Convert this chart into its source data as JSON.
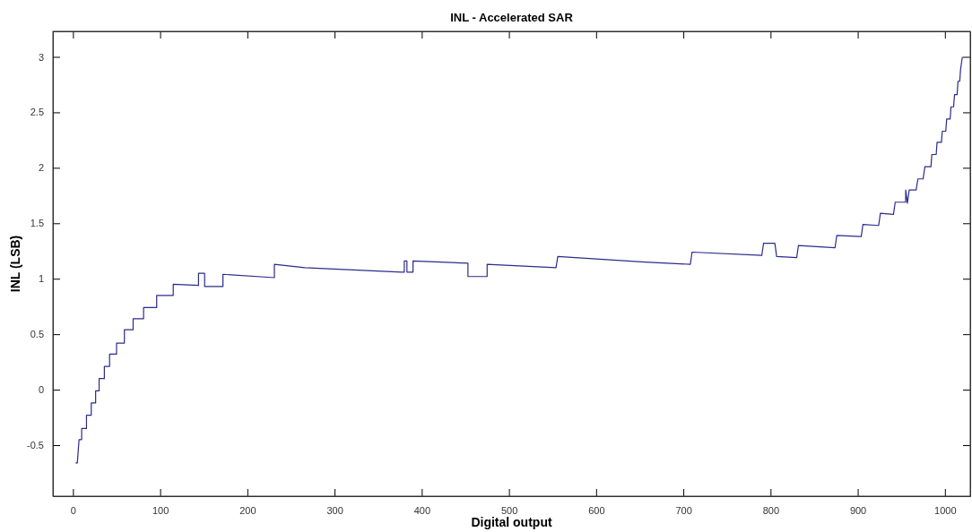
{
  "chart_data": {
    "type": "line",
    "title": "INL - Accelerated SAR",
    "xlabel": "Digital output",
    "ylabel": "INL (LSB)",
    "xlim": [
      -23,
      1029
    ],
    "ylim": [
      -0.96,
      3.23
    ],
    "xticks": [
      0,
      100,
      200,
      300,
      400,
      500,
      600,
      700,
      800,
      900,
      1000
    ],
    "yticks": [
      -0.5,
      0,
      0.5,
      1,
      1.5,
      2,
      2.5,
      3
    ],
    "grid": false,
    "marker": "none",
    "line_style": "solid",
    "series": [
      {
        "color": "#2b2b8c",
        "x": [
          3,
          5,
          7,
          10,
          10,
          15.5,
          15.5,
          21,
          21,
          26,
          26,
          30,
          30,
          36,
          36,
          42,
          42,
          50,
          50,
          59,
          59,
          69,
          69,
          81,
          81,
          96,
          96,
          115,
          115,
          144,
          144,
          151,
          151,
          172,
          172,
          231,
          231,
          266,
          377,
          380,
          380,
          383,
          383,
          390,
          390,
          453,
          453,
          475,
          475,
          554,
          556,
          656,
          708,
          710,
          790,
          792,
          805,
          807,
          830,
          832,
          874,
          876,
          904,
          906,
          924,
          926,
          941,
          943,
          955,
          955,
          957,
          959,
          967,
          969,
          975,
          977,
          984,
          985,
          990,
          991,
          996,
          997,
          1001,
          1002,
          1006,
          1007,
          1010,
          1011,
          1014,
          1015,
          1017,
          1018,
          1020
        ],
        "values": [
          -0.66,
          -0.66,
          -0.45,
          -0.45,
          -0.35,
          -0.35,
          -0.23,
          -0.23,
          -0.12,
          -0.12,
          -0.01,
          -0.01,
          0.1,
          0.1,
          0.21,
          0.21,
          0.32,
          0.32,
          0.42,
          0.42,
          0.54,
          0.54,
          0.64,
          0.64,
          0.74,
          0.74,
          0.85,
          0.85,
          0.95,
          0.94,
          1.05,
          1.05,
          0.93,
          0.93,
          1.04,
          1.01,
          1.13,
          1.1,
          1.06,
          1.06,
          1.16,
          1.16,
          1.06,
          1.06,
          1.16,
          1.14,
          1.02,
          1.02,
          1.13,
          1.1,
          1.2,
          1.15,
          1.13,
          1.24,
          1.21,
          1.32,
          1.32,
          1.2,
          1.19,
          1.3,
          1.28,
          1.39,
          1.38,
          1.49,
          1.48,
          1.59,
          1.58,
          1.69,
          1.69,
          1.8,
          1.68,
          1.8,
          1.8,
          1.9,
          1.9,
          2.01,
          2.01,
          2.12,
          2.12,
          2.23,
          2.23,
          2.33,
          2.33,
          2.44,
          2.44,
          2.55,
          2.55,
          2.66,
          2.66,
          2.78,
          2.78,
          2.89,
          3.0
        ]
      }
    ]
  }
}
